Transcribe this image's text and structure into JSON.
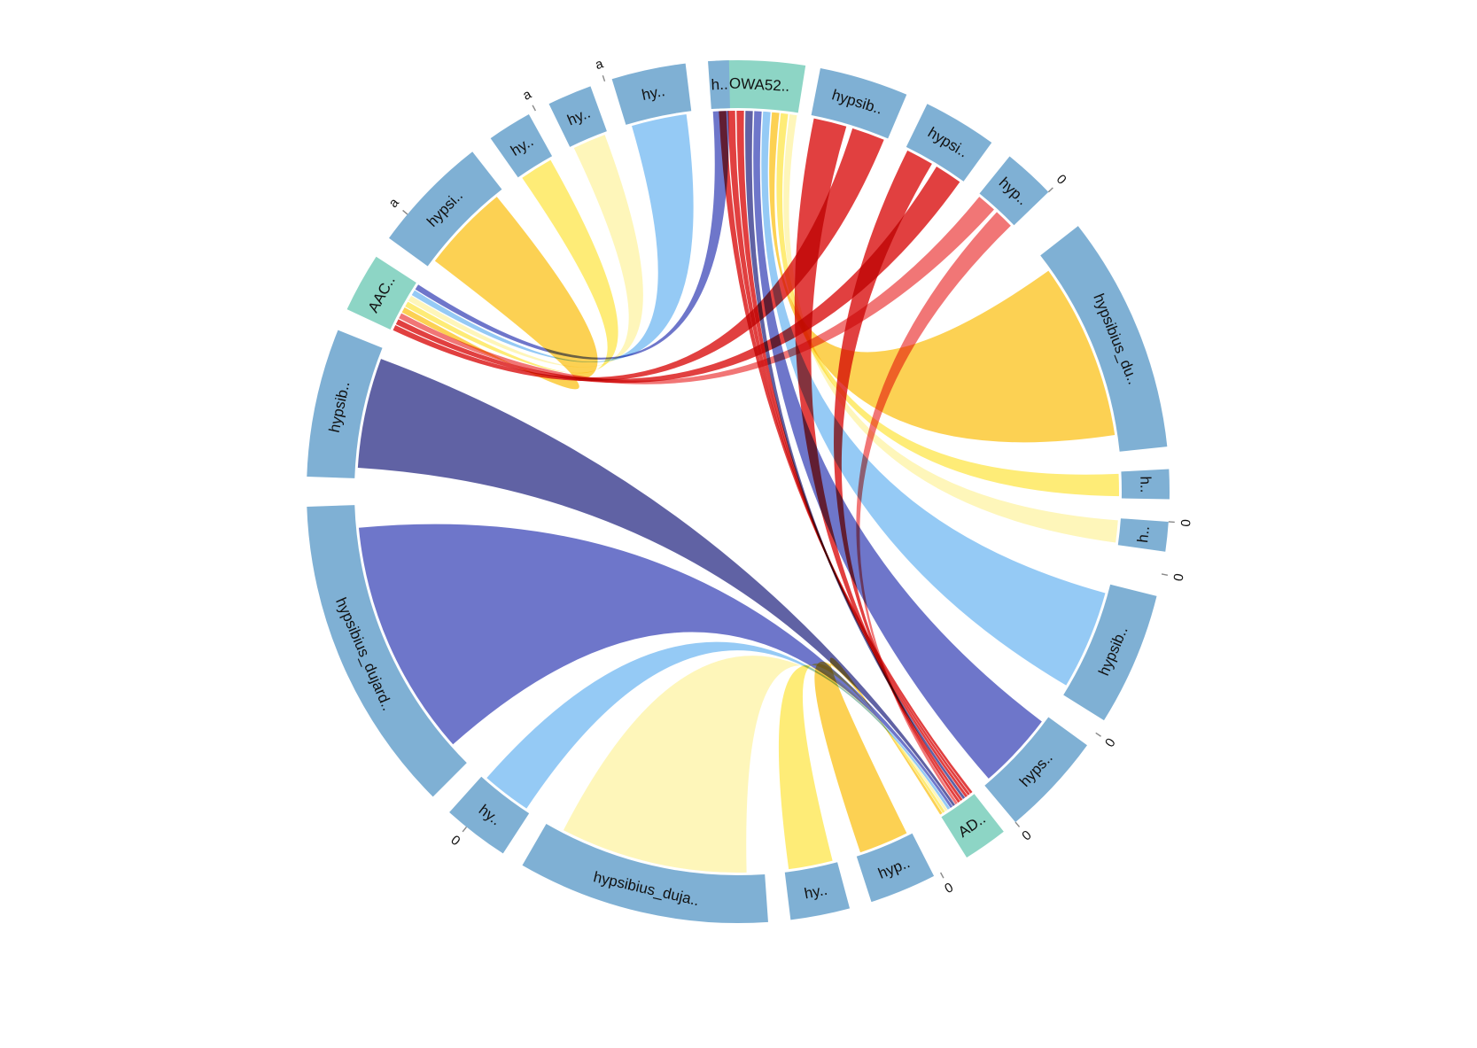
{
  "colors": {
    "segment_default": "#7fb0d4",
    "segment_highlight": "#8dd5c5",
    "red": "#d70000",
    "red_light": "#ec4848",
    "navy": "#2b2e86",
    "indigo": "#3d48b8",
    "sky": "#72b8f2",
    "amber": "#fbc21a",
    "yellow": "#fde64a",
    "pale_yellow": "#fef3a3",
    "tick": "#888888"
  },
  "segments": [
    {
      "id": "s1",
      "label": "OWA52..",
      "highlight": true
    },
    {
      "id": "s2",
      "label": "hypsib..",
      "highlight": false
    },
    {
      "id": "s3",
      "label": "hypsi..",
      "highlight": false
    },
    {
      "id": "s4",
      "label": "hyp..",
      "highlight": false
    },
    {
      "id": "s5",
      "label": "hypsibius_du..",
      "highlight": false
    },
    {
      "id": "s6",
      "label": "h..",
      "highlight": false
    },
    {
      "id": "s7",
      "label": "h..",
      "highlight": false
    },
    {
      "id": "s8",
      "label": "hypsib..",
      "highlight": false
    },
    {
      "id": "s9",
      "label": "hyps..",
      "highlight": false
    },
    {
      "id": "s10",
      "label": "AD..",
      "highlight": true
    },
    {
      "id": "s11",
      "label": "hyp..",
      "highlight": false
    },
    {
      "id": "s12",
      "label": "hy..",
      "highlight": false
    },
    {
      "id": "s13",
      "label": "hypsibius_duja..",
      "highlight": false
    },
    {
      "id": "s14",
      "label": "hy..",
      "highlight": false
    },
    {
      "id": "s15",
      "label": "hypsibius_dujard..",
      "highlight": false
    },
    {
      "id": "s16",
      "label": "hypsib..",
      "highlight": false
    },
    {
      "id": "s17",
      "label": "AAC..",
      "highlight": true
    },
    {
      "id": "s18",
      "label": "hypsi..",
      "highlight": false
    },
    {
      "id": "s19",
      "label": "hy..",
      "highlight": false
    },
    {
      "id": "s20",
      "label": "hy..",
      "highlight": false
    },
    {
      "id": "s21",
      "label": "hy..",
      "highlight": false
    },
    {
      "id": "s22",
      "label": "h..",
      "highlight": false
    }
  ],
  "tick_labels": [
    {
      "text": "a"
    },
    {
      "text": "a"
    },
    {
      "text": "a"
    },
    {
      "text": "0"
    },
    {
      "text": "0"
    },
    {
      "text": "0"
    },
    {
      "text": "0"
    },
    {
      "text": "0"
    },
    {
      "text": "0"
    },
    {
      "text": "0"
    }
  ],
  "ribbons": [
    {
      "from": "s1",
      "to": "s10",
      "color": "red"
    },
    {
      "from": "s1",
      "to": "s10",
      "color": "red"
    },
    {
      "from": "s1",
      "to": "s10",
      "color": "red"
    },
    {
      "from": "s1",
      "to": "s10",
      "color": "navy"
    },
    {
      "from": "s1",
      "to": "s9",
      "color": "indigo"
    },
    {
      "from": "s1",
      "to": "s8",
      "color": "sky"
    },
    {
      "from": "s1",
      "to": "s5",
      "color": "amber"
    },
    {
      "from": "s1",
      "to": "s6",
      "color": "yellow"
    },
    {
      "from": "s1",
      "to": "s7",
      "color": "pale_yellow"
    },
    {
      "from": "s2",
      "to": "s10",
      "color": "red"
    },
    {
      "from": "s2",
      "to": "s17",
      "color": "red"
    },
    {
      "from": "s3",
      "to": "s10",
      "color": "red"
    },
    {
      "from": "s3",
      "to": "s17",
      "color": "red"
    },
    {
      "from": "s4",
      "to": "s17",
      "color": "red_light"
    },
    {
      "from": "s4",
      "to": "s10",
      "color": "red_light"
    },
    {
      "from": "s17",
      "to": "s18",
      "color": "amber"
    },
    {
      "from": "s17",
      "to": "s19",
      "color": "yellow"
    },
    {
      "from": "s17",
      "to": "s20",
      "color": "pale_yellow"
    },
    {
      "from": "s17",
      "to": "s21",
      "color": "sky"
    },
    {
      "from": "s17",
      "to": "s22",
      "color": "indigo"
    },
    {
      "from": "s16",
      "to": "s10",
      "color": "navy"
    },
    {
      "from": "s15",
      "to": "s10",
      "color": "indigo"
    },
    {
      "from": "s14",
      "to": "s10",
      "color": "sky"
    },
    {
      "from": "s13",
      "to": "s10",
      "color": "pale_yellow"
    },
    {
      "from": "s12",
      "to": "s10",
      "color": "yellow"
    },
    {
      "from": "s11",
      "to": "s10",
      "color": "amber"
    }
  ]
}
